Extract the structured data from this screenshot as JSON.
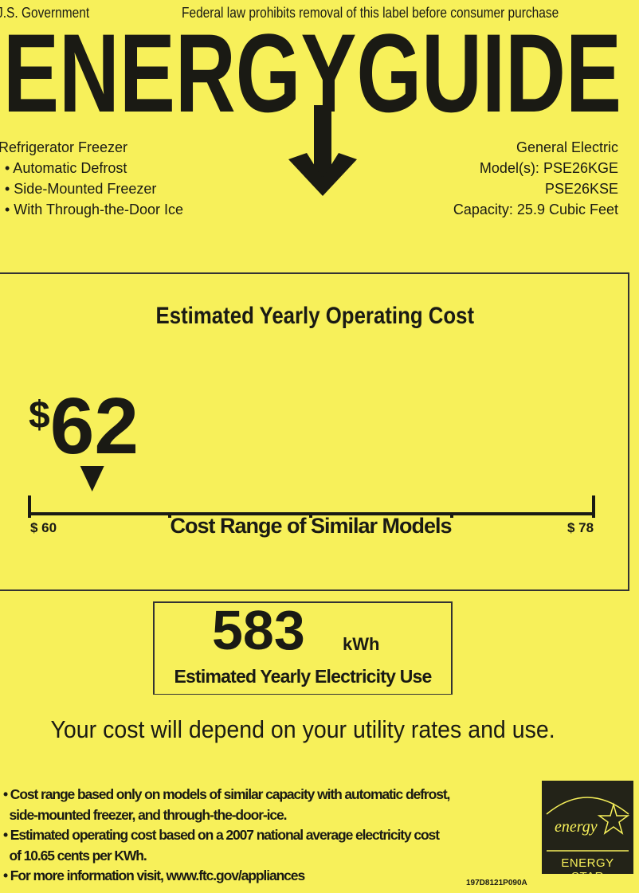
{
  "header": {
    "government": "J.S. Government",
    "notice": "Federal law prohibits removal of this label before consumer purchase",
    "logo_text": "ENERGYGUIDE"
  },
  "product": {
    "type": "Refrigerator Freezer",
    "features": [
      "• Automatic Defrost",
      "• Side-Mounted Freezer",
      "• With Through-the-Door Ice"
    ]
  },
  "manufacturer": {
    "brand": "General Electric",
    "models_line1": "Model(s): PSE26KGE",
    "models_line2": "PSE26KSE",
    "capacity": "Capacity: 25.9 Cubic Feet"
  },
  "cost": {
    "title": "Estimated Yearly Operating Cost",
    "dollar_sign": "$",
    "amount": "62",
    "value": 62,
    "range_min": 60,
    "range_max": 78,
    "min_label": "$ 60",
    "max_label": "$ 78",
    "range_label": "Cost Range of Similar Models"
  },
  "electricity": {
    "value": "583",
    "unit": "kWh",
    "label": "Estimated Yearly Electricity Use"
  },
  "disclaimer": "Your cost will depend on your utility rates and use.",
  "footnotes": [
    "• Cost range based only on models of similar capacity with automatic defrost,",
    "  side-mounted freezer, and through-the-door-ice.",
    "• Estimated operating cost based on a 2007 national average electricity cost",
    "  of 10.65 cents per KWh.",
    "• For more information visit, www.ftc.gov/appliances"
  ],
  "energy_star": {
    "script": "energy",
    "label": "ENERGY STAR"
  },
  "label_code": "197D8121P090A",
  "colors": {
    "background": "#f7f05a",
    "ink": "#1a1a14"
  }
}
